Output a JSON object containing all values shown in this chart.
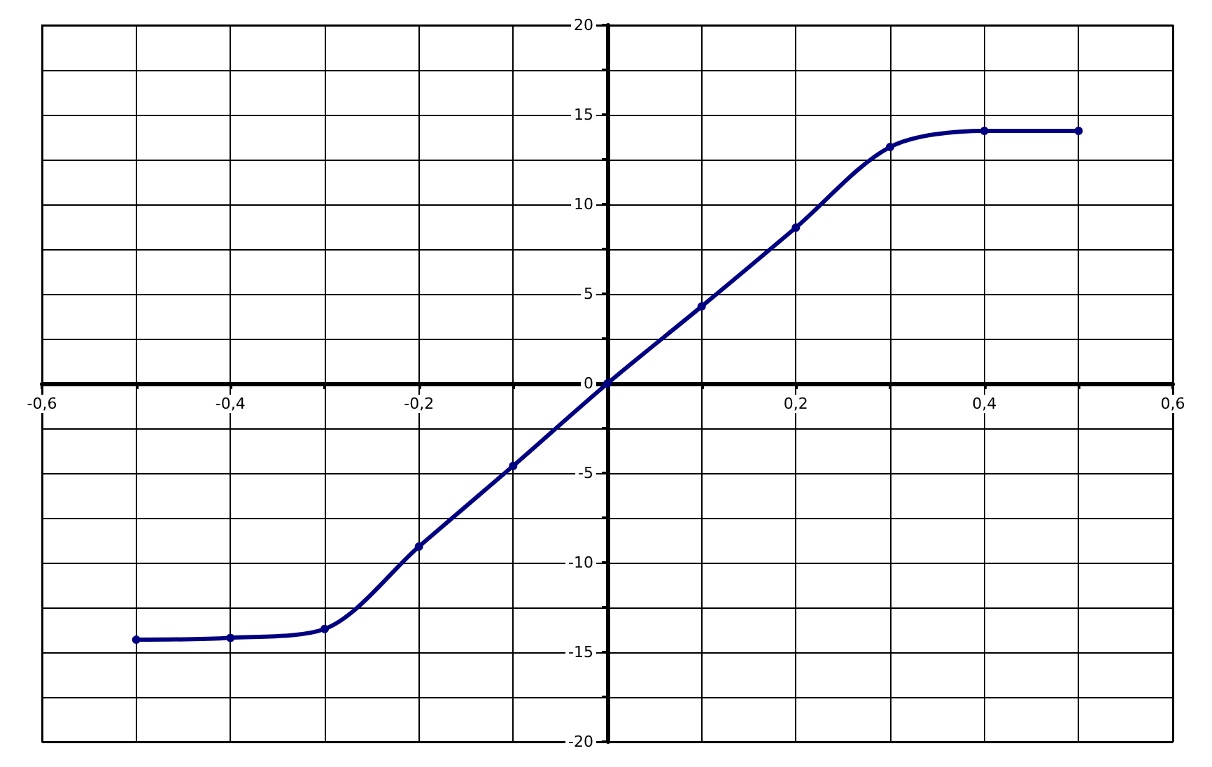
{
  "chart_data": {
    "type": "line",
    "x": [
      -0.5,
      -0.4,
      -0.3,
      -0.2,
      -0.1,
      0,
      0.1,
      0.2,
      0.3,
      0.4,
      0.5
    ],
    "series": [
      {
        "color": "#000080",
        "values": [
          -14.3,
          -14.2,
          -13.7,
          -9.1,
          -4.6,
          0,
          4.3,
          8.7,
          13.2,
          14.1,
          14.1
        ]
      }
    ],
    "xlim": [
      -0.6,
      0.6
    ],
    "xticks": [
      {
        "value": -0.6,
        "label": "-0,6"
      },
      {
        "value": -0.5,
        "label": null
      },
      {
        "value": -0.4,
        "label": "-0,4"
      },
      {
        "value": -0.3,
        "label": null
      },
      {
        "value": -0.2,
        "label": "-0,2"
      },
      {
        "value": -0.1,
        "label": null
      },
      {
        "value": 0,
        "label": null
      },
      {
        "value": 0.1,
        "label": null
      },
      {
        "value": 0.2,
        "label": "0,2"
      },
      {
        "value": 0.3,
        "label": null
      },
      {
        "value": 0.4,
        "label": "0,4"
      },
      {
        "value": 0.5,
        "label": null
      },
      {
        "value": 0.6,
        "label": "0,6"
      }
    ],
    "ylim": [
      -20,
      20
    ],
    "yticks": [
      -20,
      {
        "value": -17.5,
        "label": null
      },
      -15,
      {
        "value": -12.5,
        "label": null
      },
      -10,
      {
        "value": -7.5,
        "label": null
      },
      -5,
      {
        "value": -2.5,
        "label": null
      },
      0,
      {
        "value": 2.5,
        "label": null
      },
      5,
      {
        "value": 7.5,
        "label": null
      },
      10,
      {
        "value": 12.5,
        "label": null
      },
      15,
      {
        "value": 17.5,
        "label": null
      },
      20
    ],
    "grid": true,
    "marker": "circle",
    "line_style": "solid"
  }
}
